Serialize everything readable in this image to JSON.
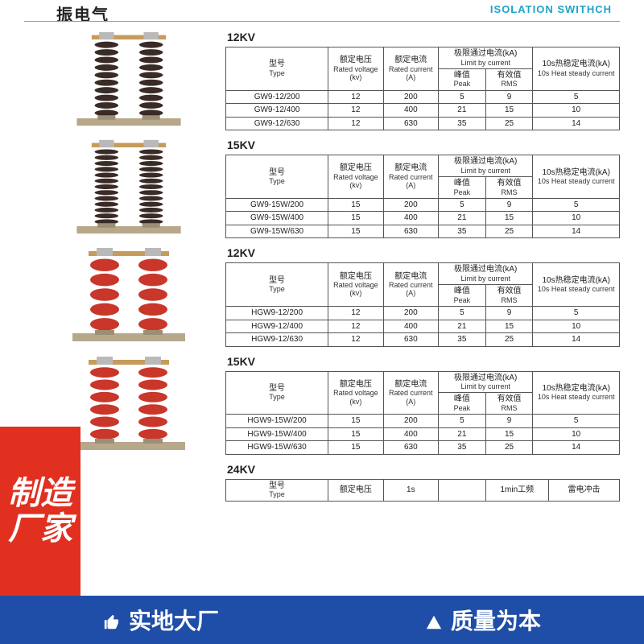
{
  "header": {
    "left_text": "振电气",
    "right_text": "ISOLATION SWITHCH"
  },
  "badge": {
    "l1": "制造",
    "l2": "厂家"
  },
  "banner": {
    "left": "实地大厂",
    "right": "质量为本"
  },
  "cols": {
    "type_cn": "型号",
    "type_en": "Type",
    "voltage_cn": "额定电压",
    "voltage_en": "Rated voltage",
    "voltage_unit": "(kv)",
    "current_cn": "额定电流",
    "current_en": "Rated current",
    "current_unit": "(A)",
    "limit_cn": "极限通过电流(kA)",
    "limit_en": "Limit by current",
    "peak_cn": "峰值",
    "peak_en": "Peak",
    "rms_cn": "有效值",
    "rms_en": "RMS",
    "heat_cn": "10s热稳定电流(kA)",
    "heat_en": "10s Heat steady current"
  },
  "sections": [
    {
      "title": "12KV",
      "img_variant": "black-10",
      "rows": [
        {
          "type": "GW9-12/200",
          "v": "12",
          "a": "200",
          "peak": "5",
          "rms": "9",
          "heat": "5"
        },
        {
          "type": "GW9-12/400",
          "v": "12",
          "a": "400",
          "peak": "21",
          "rms": "15",
          "heat": "10"
        },
        {
          "type": "GW9-12/630",
          "v": "12",
          "a": "630",
          "peak": "35",
          "rms": "25",
          "heat": "14"
        }
      ]
    },
    {
      "title": "15KV",
      "img_variant": "black-13",
      "rows": [
        {
          "type": "GW9-15W/200",
          "v": "15",
          "a": "200",
          "peak": "5",
          "rms": "9",
          "heat": "5"
        },
        {
          "type": "GW9-15W/400",
          "v": "15",
          "a": "400",
          "peak": "21",
          "rms": "15",
          "heat": "10"
        },
        {
          "type": "GW9-15W/630",
          "v": "15",
          "a": "630",
          "peak": "35",
          "rms": "25",
          "heat": "14"
        }
      ]
    },
    {
      "title": "12KV",
      "img_variant": "red-5",
      "rows": [
        {
          "type": "HGW9-12/200",
          "v": "12",
          "a": "200",
          "peak": "5",
          "rms": "9",
          "heat": "5"
        },
        {
          "type": "HGW9-12/400",
          "v": "12",
          "a": "400",
          "peak": "21",
          "rms": "15",
          "heat": "10"
        },
        {
          "type": "HGW9-12/630",
          "v": "12",
          "a": "630",
          "peak": "35",
          "rms": "25",
          "heat": "14"
        }
      ]
    },
    {
      "title": "15KV",
      "img_variant": "red-6",
      "rows": [
        {
          "type": "HGW9-15W/200",
          "v": "15",
          "a": "200",
          "peak": "5",
          "rms": "9",
          "heat": "5"
        },
        {
          "type": "HGW9-15W/400",
          "v": "15",
          "a": "400",
          "peak": "21",
          "rms": "15",
          "heat": "10"
        },
        {
          "type": "HGW9-15W/630",
          "v": "15",
          "a": "630",
          "peak": "35",
          "rms": "25",
          "heat": "14"
        }
      ]
    }
  ],
  "section24": {
    "title": "24KV",
    "partial_cols": {
      "c3": "1s",
      "c4": "1min工频",
      "c5": "雷电冲击"
    }
  },
  "style": {
    "accent": "#1fa3c7",
    "banner_bg": "#1f4ea8",
    "badge_bg": "#e13020",
    "table_border": "#555555"
  }
}
